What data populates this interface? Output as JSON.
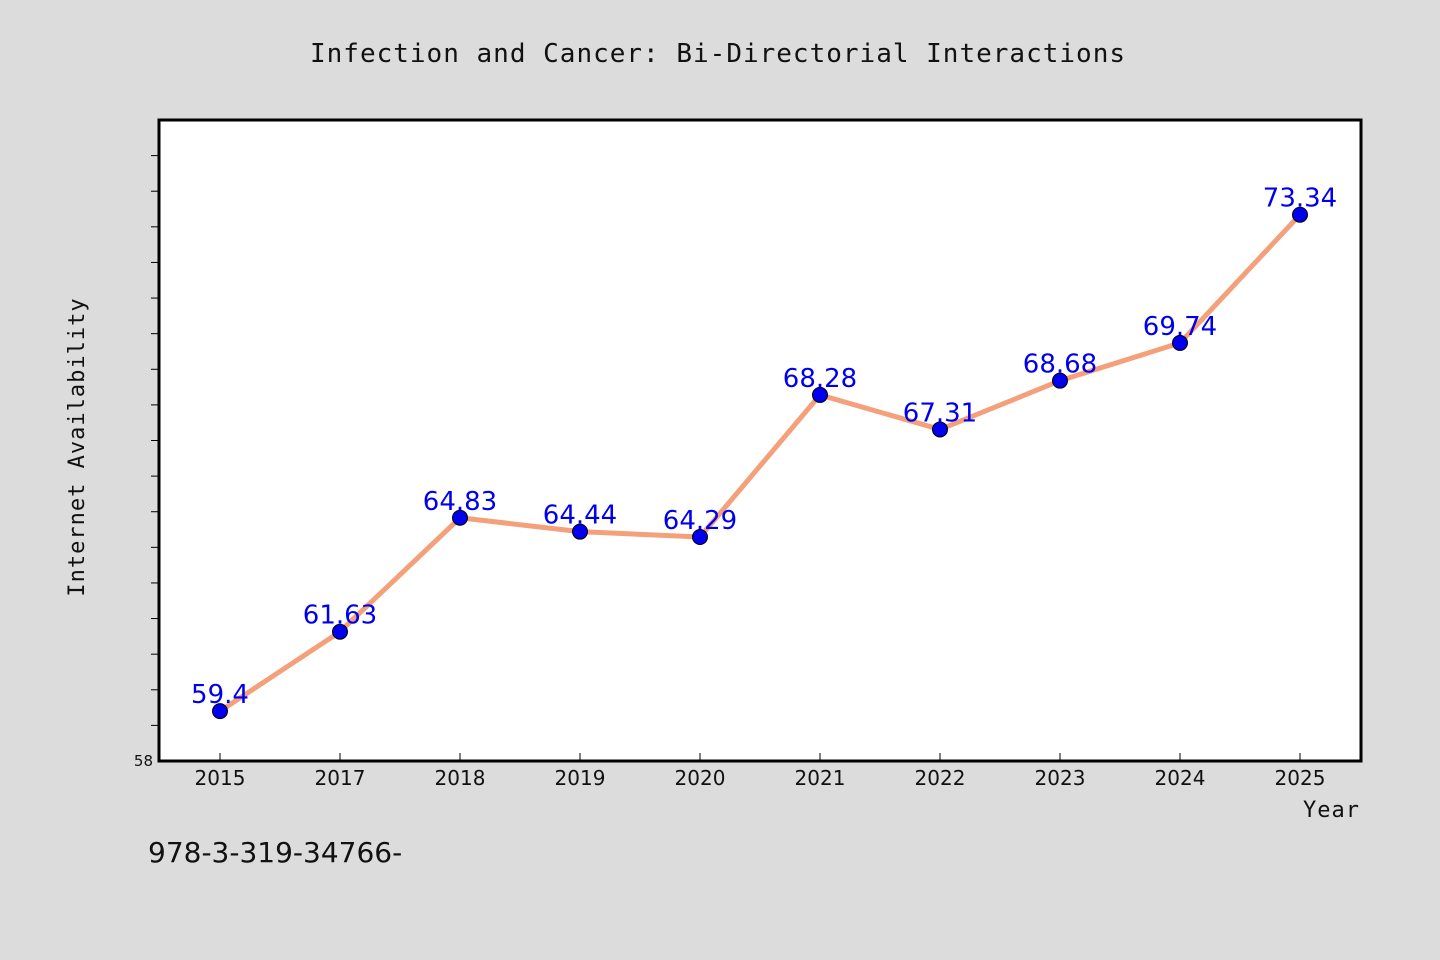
{
  "chart_data": {
    "type": "line",
    "title": "Infection and Cancer: Bi-Directorial Interactions",
    "xlabel": "Year",
    "ylabel": "Internet Availability",
    "categories": [
      "2015",
      "2017",
      "2018",
      "2019",
      "2020",
      "2021",
      "2022",
      "2023",
      "2024",
      "2025"
    ],
    "series": [
      {
        "values": [
          59.4,
          61.63,
          64.83,
          64.44,
          64.29,
          68.28,
          67.31,
          68.68,
          69.74,
          73.34
        ],
        "labels": [
          "59.4",
          "61.63",
          "64.83",
          "64.44",
          "64.29",
          "68.28",
          "67.31",
          "68.68",
          "69.74",
          "73.34"
        ]
      }
    ],
    "ylim": [
      58,
      76
    ],
    "ytick_labels": [
      "58"
    ],
    "grid": false,
    "colors": {
      "line": "#f4a07a",
      "marker": "#0000ee",
      "data_label": "#0000ee",
      "background": "#dcdcdc",
      "plot_bg": "#ffffff"
    }
  },
  "footer": {
    "text": "978-3-319-34766-"
  }
}
